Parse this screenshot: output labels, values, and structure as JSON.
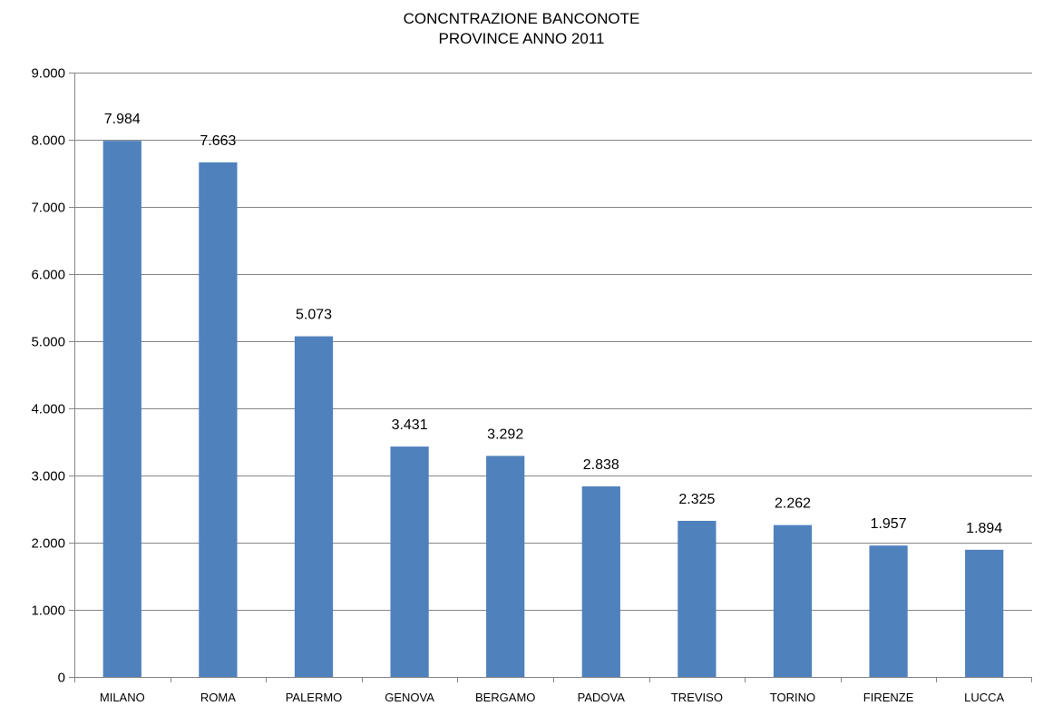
{
  "chart_data": {
    "type": "bar",
    "title_lines": [
      "CONCNTRAZIONE BANCONOTE",
      "PROVINCE ANNO 2011"
    ],
    "xlabel": "",
    "ylabel": "",
    "categories": [
      "MILANO",
      "ROMA",
      "PALERMO",
      "GENOVA",
      "BERGAMO",
      "PADOVA",
      "TREVISO",
      "TORINO",
      "FIRENZE",
      "LUCCA"
    ],
    "values": [
      7984,
      7663,
      5073,
      3431,
      3292,
      2838,
      2325,
      2262,
      1957,
      1894
    ],
    "data_labels": [
      "7.984",
      "7.663",
      "5.073",
      "3.431",
      "3.292",
      "2.838",
      "2.325",
      "2.262",
      "1.957",
      "1.894"
    ],
    "ylim": [
      0,
      9000
    ],
    "y_ticks": [
      0,
      1000,
      2000,
      3000,
      4000,
      5000,
      6000,
      7000,
      8000,
      9000
    ],
    "y_tick_labels": [
      "0",
      "1.000",
      "2.000",
      "3.000",
      "4.000",
      "5.000",
      "6.000",
      "7.000",
      "8.000",
      "9.000"
    ],
    "grid": true,
    "legend": "none",
    "bar_color": "#4F81BD",
    "gridline_color": "#868686",
    "axis_color": "#868686"
  }
}
